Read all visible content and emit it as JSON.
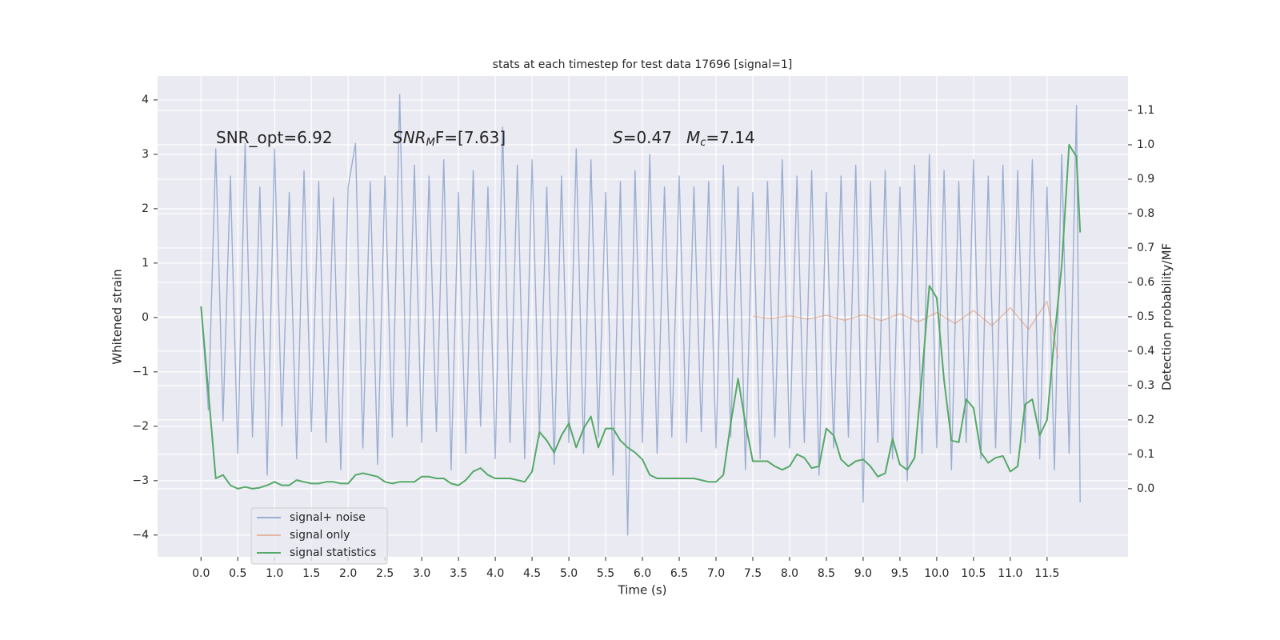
{
  "chart_data": {
    "type": "line",
    "title": "stats at each timestep for test data 17696 [signal=1]",
    "xlabel": "Time (s)",
    "ylabel": "Whitened strain",
    "y2label": "Detection probability/MF",
    "xlim": [
      -0.59,
      12.6
    ],
    "ylim": [
      -4.4,
      4.44
    ],
    "y2lim": [
      -0.198,
      1.2
    ],
    "grid": true,
    "legend": "lower left",
    "xticks": [
      {
        "value": 0,
        "label": "0.0"
      },
      {
        "value": 0.5,
        "label": "0.5"
      },
      {
        "value": 1,
        "label": "1.0"
      },
      {
        "value": 1.5,
        "label": "1.5"
      },
      {
        "value": 2,
        "label": "2.0"
      },
      {
        "value": 2.5,
        "label": "2.5"
      },
      {
        "value": 3,
        "label": "3.0"
      },
      {
        "value": 3.5,
        "label": "3.5"
      },
      {
        "value": 4,
        "label": "4.0"
      },
      {
        "value": 4.5,
        "label": "4.5"
      },
      {
        "value": 5,
        "label": "5.0"
      },
      {
        "value": 5.5,
        "label": "5.5"
      },
      {
        "value": 6,
        "label": "6.0"
      },
      {
        "value": 6.5,
        "label": "6.5"
      },
      {
        "value": 7,
        "label": "7.0"
      },
      {
        "value": 7.5,
        "label": "7.5"
      },
      {
        "value": 8,
        "label": "8.0"
      },
      {
        "value": 8.5,
        "label": "8.5"
      },
      {
        "value": 9,
        "label": "9.0"
      },
      {
        "value": 9.5,
        "label": "9.5"
      },
      {
        "value": 10,
        "label": "10.0"
      },
      {
        "value": 10.5,
        "label": "10.5"
      },
      {
        "value": 11,
        "label": "11.0"
      },
      {
        "value": 11.5,
        "label": "11.5"
      }
    ],
    "yticks": [
      {
        "value": -4,
        "label": "−4"
      },
      {
        "value": -3,
        "label": "−3"
      },
      {
        "value": -2,
        "label": "−2"
      },
      {
        "value": -1,
        "label": "−1"
      },
      0,
      1,
      2,
      3,
      4
    ],
    "y2ticks": [
      {
        "value": 0,
        "label": "0.0"
      },
      {
        "value": 0.1,
        "label": "0.1"
      },
      {
        "value": 0.2,
        "label": "0.2"
      },
      {
        "value": 0.3,
        "label": "0.3"
      },
      {
        "value": 0.4,
        "label": "0.4"
      },
      {
        "value": 0.5,
        "label": "0.5"
      },
      {
        "value": 0.6,
        "label": "0.6"
      },
      {
        "value": 0.7,
        "label": "0.7"
      },
      {
        "value": 0.8,
        "label": "0.8"
      },
      {
        "value": 0.9,
        "label": "0.9"
      },
      {
        "value": 1,
        "label": "1.0"
      },
      {
        "value": 1.1,
        "label": "1.1"
      }
    ],
    "annotations": [
      {
        "main": "SNR_opt=6.92",
        "italic": false
      },
      {
        "main": "SNR",
        "sub": "M",
        "rest": "F=[7.63]",
        "italic": true
      },
      {
        "main": "S",
        "rest": "=0.47",
        "italic": true
      },
      {
        "main": "M",
        "sub": "c",
        "rest": "=7.14",
        "italic": true
      }
    ],
    "series": [
      {
        "name": "signal+ noise",
        "color": "#4c72b0",
        "opacity": 0.5,
        "x": [
          0,
          0.1,
          0.2,
          0.3,
          0.4,
          0.5,
          0.6,
          0.7,
          0.8,
          0.9,
          1,
          1.1,
          1.2,
          1.3,
          1.4,
          1.5,
          1.6,
          1.7,
          1.8,
          1.9,
          2,
          2.1,
          2.2,
          2.3,
          2.4,
          2.5,
          2.6,
          2.7,
          2.8,
          2.9,
          3,
          3.1,
          3.2,
          3.3,
          3.4,
          3.5,
          3.6,
          3.7,
          3.8,
          3.9,
          4,
          4.1,
          4.2,
          4.3,
          4.4,
          4.5,
          4.6,
          4.7,
          4.8,
          4.9,
          5,
          5.1,
          5.2,
          5.3,
          5.4,
          5.5,
          5.6,
          5.7,
          5.8,
          5.9,
          6,
          6.1,
          6.2,
          6.3,
          6.4,
          6.5,
          6.6,
          6.7,
          6.8,
          6.9,
          7,
          7.1,
          7.2,
          7.3,
          7.4,
          7.5,
          7.6,
          7.7,
          7.8,
          7.9,
          8,
          8.1,
          8.2,
          8.3,
          8.4,
          8.5,
          8.6,
          8.7,
          8.8,
          8.9,
          9,
          9.1,
          9.2,
          9.3,
          9.4,
          9.5,
          9.6,
          9.7,
          9.8,
          9.9,
          10,
          10.1,
          10.2,
          10.3,
          10.4,
          10.5,
          10.6,
          10.7,
          10.8,
          10.9,
          11,
          11.1,
          11.2,
          11.3,
          11.4,
          11.5,
          11.6,
          11.7,
          11.8,
          11.9,
          11.95
        ],
        "values": [
          0.2,
          -1.7,
          3.1,
          -1.9,
          2.6,
          -2.5,
          3.2,
          -2.2,
          2.4,
          -2.9,
          3.1,
          -2.0,
          2.3,
          -2.6,
          2.7,
          -2.1,
          2.5,
          -2.3,
          2.2,
          -2.8,
          2.4,
          3.2,
          -2.4,
          2.5,
          -2.7,
          2.6,
          -2.2,
          4.1,
          -2.0,
          2.8,
          -2.3,
          2.6,
          -2.1,
          2.9,
          -2.8,
          2.3,
          -2.5,
          2.7,
          -2.0,
          2.4,
          -2.6,
          3.5,
          -2.3,
          2.8,
          -2.6,
          2.9,
          -2.2,
          2.4,
          -2.7,
          2.6,
          -2.3,
          3.1,
          -2.5,
          2.9,
          -2.2,
          2.3,
          -2.9,
          2.5,
          -4.0,
          2.7,
          -2.3,
          3.0,
          -2.5,
          2.4,
          -2.2,
          2.6,
          -2.3,
          2.4,
          -2.1,
          2.5,
          -2.4,
          2.8,
          -2.2,
          2.4,
          -2.8,
          2.3,
          -2.6,
          2.5,
          -2.2,
          2.9,
          -2.4,
          2.6,
          -2.3,
          2.7,
          -2.9,
          2.3,
          -2.4,
          2.6,
          -2.2,
          2.8,
          -3.4,
          2.5,
          -2.3,
          2.7,
          -2.6,
          2.4,
          -3.0,
          2.8,
          -2.5,
          3.0,
          -2.4,
          2.7,
          -2.8,
          2.5,
          -2.3,
          2.9,
          -2.6,
          2.6,
          -2.4,
          2.8,
          -2.5,
          2.7,
          -2.3,
          2.9,
          -2.6,
          2.4,
          -2.8,
          3.0,
          -2.5,
          3.9,
          -3.4
        ]
      },
      {
        "name": "signal only",
        "color": "#dd8452",
        "opacity": 0.5,
        "x": [
          7.5,
          7.75,
          8,
          8.25,
          8.5,
          8.75,
          9,
          9.25,
          9.5,
          9.75,
          10,
          10.25,
          10.5,
          10.75,
          11,
          11.25,
          11.5,
          11.65
        ],
        "values": [
          0.02,
          -0.02,
          0.03,
          -0.03,
          0.04,
          -0.05,
          0.05,
          -0.06,
          0.07,
          -0.08,
          0.09,
          -0.11,
          0.13,
          -0.15,
          0.18,
          -0.22,
          0.3,
          -0.75
        ]
      },
      {
        "name": "signal statistics",
        "color": "#55a868",
        "opacity": 1,
        "axis": "y2",
        "x": [
          0,
          0.1,
          0.2,
          0.3,
          0.4,
          0.5,
          0.6,
          0.7,
          0.8,
          0.9,
          1,
          1.1,
          1.2,
          1.3,
          1.4,
          1.5,
          1.6,
          1.7,
          1.8,
          1.9,
          2,
          2.1,
          2.2,
          2.3,
          2.4,
          2.5,
          2.6,
          2.7,
          2.8,
          2.9,
          3,
          3.1,
          3.2,
          3.3,
          3.4,
          3.5,
          3.6,
          3.7,
          3.8,
          3.9,
          4,
          4.1,
          4.2,
          4.3,
          4.4,
          4.5,
          4.6,
          4.7,
          4.8,
          4.9,
          5,
          5.1,
          5.2,
          5.3,
          5.4,
          5.5,
          5.6,
          5.7,
          5.8,
          5.9,
          6,
          6.1,
          6.2,
          6.3,
          6.4,
          6.5,
          6.6,
          6.7,
          6.8,
          6.9,
          7,
          7.1,
          7.2,
          7.3,
          7.4,
          7.5,
          7.6,
          7.7,
          7.8,
          7.9,
          8,
          8.1,
          8.2,
          8.3,
          8.4,
          8.5,
          8.6,
          8.7,
          8.8,
          8.9,
          9,
          9.1,
          9.2,
          9.3,
          9.4,
          9.5,
          9.6,
          9.7,
          9.8,
          9.9,
          10,
          10.1,
          10.2,
          10.3,
          10.4,
          10.5,
          10.6,
          10.7,
          10.8,
          10.9,
          11,
          11.1,
          11.2,
          11.3,
          11.4,
          11.5,
          11.6,
          11.7,
          11.8,
          11.9,
          11.95
        ],
        "values": [
          0.53,
          0.28,
          0.03,
          0.04,
          0.01,
          0.0,
          0.005,
          0.0,
          0.003,
          0.01,
          0.02,
          0.01,
          0.01,
          0.025,
          0.02,
          0.015,
          0.015,
          0.02,
          0.02,
          0.015,
          0.015,
          0.04,
          0.045,
          0.04,
          0.035,
          0.02,
          0.015,
          0.02,
          0.02,
          0.02,
          0.035,
          0.035,
          0.03,
          0.03,
          0.015,
          0.01,
          0.025,
          0.05,
          0.06,
          0.04,
          0.03,
          0.03,
          0.03,
          0.025,
          0.02,
          0.05,
          0.165,
          0.14,
          0.105,
          0.155,
          0.19,
          0.12,
          0.175,
          0.21,
          0.12,
          0.175,
          0.175,
          0.14,
          0.12,
          0.105,
          0.085,
          0.04,
          0.03,
          0.03,
          0.03,
          0.03,
          0.03,
          0.03,
          0.025,
          0.02,
          0.02,
          0.04,
          0.19,
          0.32,
          0.19,
          0.08,
          0.08,
          0.08,
          0.065,
          0.055,
          0.065,
          0.1,
          0.09,
          0.06,
          0.065,
          0.175,
          0.155,
          0.085,
          0.065,
          0.08,
          0.085,
          0.065,
          0.035,
          0.045,
          0.145,
          0.07,
          0.055,
          0.09,
          0.33,
          0.59,
          0.555,
          0.315,
          0.14,
          0.135,
          0.26,
          0.235,
          0.105,
          0.075,
          0.09,
          0.095,
          0.05,
          0.065,
          0.245,
          0.26,
          0.155,
          0.2,
          0.44,
          0.65,
          1.0,
          0.965,
          0.745
        ]
      }
    ]
  }
}
